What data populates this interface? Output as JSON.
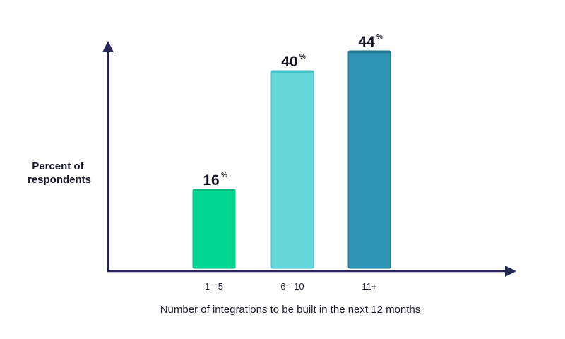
{
  "chart_data": {
    "type": "bar",
    "categories": [
      "1 - 5",
      "6 - 10",
      "11+"
    ],
    "values": [
      16,
      40,
      44
    ],
    "value_suffix": "%",
    "bar_colors": [
      "#00d68f",
      "#66d8dc",
      "#2d93b0"
    ],
    "bar_edge_colors": [
      "#06b97c",
      "#49c2c7",
      "#1f7592"
    ],
    "axis_color": "#25255a",
    "ylabel_lines": [
      "Percent of",
      "respondents"
    ],
    "xlabel": "Number of integrations to be built in the next 12 months",
    "ylim": [
      0,
      50
    ],
    "grid": false
  }
}
